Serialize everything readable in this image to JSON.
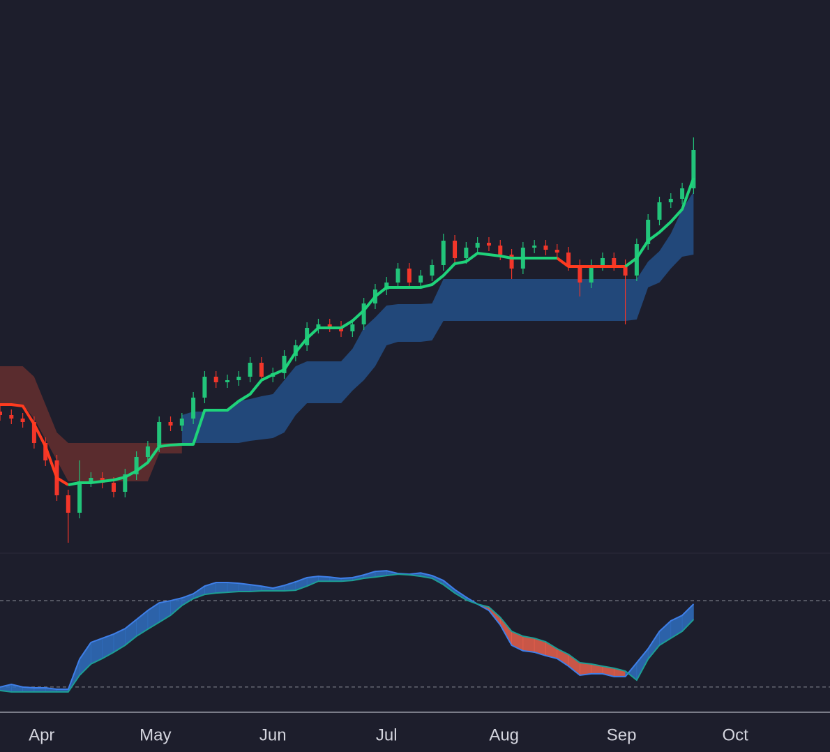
{
  "chart_data": {
    "type": "candlestick",
    "up_color": "#22c47a",
    "down_color": "#f2362a",
    "xlim": [
      80,
      299
    ],
    "ylim": [
      10,
      800
    ],
    "xticks": [
      {
        "value": 91,
        "label": "Apr"
      },
      {
        "value": 121,
        "label": "May"
      },
      {
        "value": 152,
        "label": "Jun"
      },
      {
        "value": 182,
        "label": "Jul"
      },
      {
        "value": 213,
        "label": "Aug"
      },
      {
        "value": 244,
        "label": "Sep"
      },
      {
        "value": 274,
        "label": "Oct"
      }
    ],
    "x": [
      80,
      83,
      86,
      89,
      92,
      95,
      98,
      101,
      104,
      107,
      110,
      113,
      116,
      119,
      122,
      125,
      128,
      131,
      134,
      137,
      140,
      143,
      146,
      149,
      152,
      155,
      158,
      161,
      164,
      167,
      170,
      173,
      176,
      179,
      182,
      185,
      188,
      191,
      194,
      197,
      200,
      203,
      206,
      209,
      212,
      215,
      218,
      221,
      224,
      227,
      230,
      233,
      236,
      239,
      242,
      245,
      248,
      251,
      254,
      257,
      260,
      263
    ],
    "open": [
      210,
      205,
      200,
      195,
      165,
      140,
      90,
      65,
      110,
      115,
      108,
      95,
      120,
      145,
      160,
      195,
      190,
      200,
      230,
      260,
      252,
      255,
      260,
      280,
      260,
      265,
      290,
      305,
      330,
      335,
      332,
      325,
      335,
      365,
      385,
      395,
      415,
      395,
      405,
      420,
      455,
      430,
      445,
      452,
      448,
      435,
      415,
      445,
      448,
      442,
      438,
      420,
      395,
      420,
      430,
      420,
      405,
      450,
      485,
      510,
      515,
      530
    ],
    "high": [
      218,
      213,
      208,
      203,
      173,
      148,
      98,
      140,
      123,
      123,
      116,
      128,
      153,
      168,
      203,
      203,
      208,
      238,
      268,
      268,
      263,
      268,
      288,
      288,
      273,
      298,
      313,
      338,
      343,
      343,
      340,
      343,
      373,
      393,
      403,
      423,
      423,
      413,
      428,
      465,
      463,
      453,
      460,
      460,
      456,
      443,
      453,
      456,
      456,
      450,
      446,
      428,
      428,
      438,
      438,
      428,
      458,
      493,
      518,
      523,
      538,
      603
    ],
    "low": [
      197,
      192,
      187,
      157,
      132,
      82,
      22,
      57,
      102,
      100,
      87,
      87,
      112,
      137,
      152,
      182,
      182,
      192,
      222,
      244,
      244,
      247,
      252,
      252,
      252,
      257,
      282,
      297,
      322,
      324,
      317,
      317,
      327,
      357,
      377,
      387,
      387,
      387,
      397,
      412,
      422,
      422,
      437,
      440,
      427,
      400,
      407,
      437,
      434,
      430,
      412,
      375,
      387,
      412,
      412,
      335,
      397,
      442,
      477,
      502,
      507,
      522
    ],
    "close": [
      205,
      200,
      195,
      165,
      140,
      90,
      65,
      110,
      115,
      108,
      95,
      120,
      145,
      160,
      195,
      190,
      200,
      230,
      260,
      252,
      255,
      260,
      280,
      260,
      265,
      290,
      305,
      330,
      335,
      332,
      325,
      335,
      365,
      385,
      395,
      415,
      395,
      405,
      420,
      455,
      430,
      445,
      452,
      448,
      435,
      415,
      445,
      448,
      442,
      438,
      420,
      395,
      420,
      430,
      420,
      405,
      450,
      485,
      510,
      515,
      530,
      585
    ],
    "bands": [
      {
        "color": "#6a2f30",
        "upper": [
          275,
          275,
          275,
          260,
          220,
          180,
          165,
          165,
          165,
          165,
          165,
          165,
          165,
          165,
          165,
          165,
          165,
          null,
          null,
          null,
          null,
          null,
          null,
          null,
          null,
          null,
          null,
          null,
          null,
          null,
          null,
          null,
          null,
          null,
          null,
          null,
          null,
          null,
          null,
          null,
          null,
          null,
          null,
          null,
          null,
          null,
          null,
          null,
          null,
          null,
          null,
          null,
          null,
          null,
          null,
          null,
          null,
          null,
          null,
          null,
          null,
          null
        ],
        "lower": [
          220,
          220,
          220,
          200,
          170,
          140,
          110,
          110,
          110,
          110,
          110,
          110,
          110,
          110,
          150,
          150,
          150,
          null,
          null,
          null,
          null,
          null,
          null,
          null,
          null,
          null,
          null,
          null,
          null,
          null,
          null,
          null,
          null,
          null,
          null,
          null,
          null,
          null,
          null,
          null,
          null,
          null,
          null,
          null,
          null,
          null,
          null,
          null,
          null,
          null,
          null,
          null,
          null,
          null,
          null,
          null,
          null,
          null,
          null,
          null,
          null,
          null
        ]
      },
      {
        "color": "#24538e",
        "upper": [
          null,
          null,
          null,
          null,
          null,
          null,
          null,
          null,
          null,
          null,
          null,
          null,
          null,
          null,
          null,
          null,
          205,
          210,
          210,
          210,
          210,
          225,
          228,
          232,
          235,
          255,
          275,
          282,
          282,
          282,
          282,
          300,
          330,
          345,
          362,
          364,
          364,
          364,
          365,
          400,
          400,
          400,
          400,
          400,
          400,
          400,
          400,
          400,
          400,
          400,
          400,
          400,
          400,
          400,
          400,
          400,
          400,
          425,
          440,
          465,
          500,
          525
        ],
        "lower": [
          null,
          null,
          null,
          null,
          null,
          null,
          null,
          null,
          null,
          null,
          null,
          null,
          null,
          null,
          null,
          null,
          163,
          165,
          165,
          165,
          165,
          165,
          168,
          170,
          172,
          180,
          205,
          222,
          222,
          222,
          222,
          240,
          255,
          275,
          305,
          310,
          310,
          310,
          312,
          340,
          340,
          340,
          340,
          340,
          340,
          340,
          340,
          340,
          340,
          340,
          340,
          340,
          340,
          340,
          340,
          340,
          342,
          388,
          395,
          415,
          432,
          435
        ]
      }
    ],
    "lines": [
      {
        "color": "#ff3b1f",
        "values": [
          220,
          220,
          218,
          192,
          160,
          115,
          105,
          null,
          null,
          null,
          null,
          null,
          null,
          null,
          null,
          null,
          null,
          null,
          null,
          null,
          null,
          null,
          null,
          null,
          null,
          null,
          null,
          null,
          null,
          null,
          null,
          null,
          null,
          null,
          null,
          null,
          null,
          null,
          null,
          null,
          null,
          null,
          null,
          null,
          null,
          null,
          null,
          null,
          null,
          430,
          418,
          418,
          418,
          418,
          418,
          418,
          430,
          null,
          null,
          null,
          null,
          null
        ]
      },
      {
        "color": "#1fd37a",
        "values": [
          null,
          null,
          null,
          null,
          null,
          null,
          105,
          108,
          108,
          110,
          112,
          116,
          125,
          137,
          160,
          162,
          163,
          163,
          212,
          212,
          212,
          225,
          235,
          255,
          263,
          270,
          295,
          315,
          330,
          330,
          330,
          340,
          355,
          375,
          388,
          388,
          388,
          388,
          392,
          405,
          422,
          425,
          437,
          435,
          433,
          430,
          430,
          430,
          430,
          430,
          null,
          null,
          null,
          null,
          null,
          418,
          430,
          455,
          467,
          482,
          500,
          545
        ]
      }
    ],
    "oscillator": {
      "type": "line",
      "ylim": [
        3,
        112
      ],
      "levels": [
        20,
        80
      ],
      "bull_color": "#2f6fc0",
      "bear_color": "#e8604c",
      "series": [
        {
          "color": "#3f7fe8",
          "values": [
            20.0,
            21.9,
            20.0,
            19.5,
            19.5,
            18.5,
            18.5,
            39.4,
            51.0,
            53.9,
            56.8,
            60.6,
            66.9,
            73.2,
            78.5,
            80.0,
            81.9,
            84.8,
            90.1,
            92.6,
            92.6,
            92.1,
            91.1,
            90.1,
            88.7,
            90.6,
            93.1,
            96.0,
            96.9,
            96.4,
            95.5,
            96.0,
            97.9,
            100.3,
            100.8,
            98.9,
            98.4,
            99.3,
            97.4,
            94.0,
            87.7,
            82.4,
            77.6,
            73.2,
            63.1,
            49.0,
            45.2,
            44.2,
            41.8,
            39.8,
            34.5,
            28.2,
            29.2,
            29.2,
            27.3,
            27.3,
            36.9,
            46.6,
            58.7,
            66.0,
            69.8,
            77.6
          ]
        },
        {
          "color": "#1d9e94",
          "values": [
            17.6,
            16.6,
            16.6,
            16.6,
            16.6,
            16.6,
            16.6,
            28.2,
            36.0,
            39.8,
            44.2,
            49.0,
            55.3,
            60.2,
            65.0,
            69.8,
            76.6,
            81.4,
            84.3,
            85.3,
            85.8,
            86.3,
            86.3,
            86.8,
            86.8,
            86.8,
            87.2,
            90.1,
            93.5,
            93.5,
            93.5,
            94.0,
            95.5,
            96.4,
            97.4,
            98.4,
            97.9,
            96.9,
            95.5,
            91.1,
            85.3,
            80.5,
            77.6,
            75.6,
            68.4,
            58.7,
            55.3,
            53.9,
            51.4,
            46.6,
            42.7,
            36.9,
            36.0,
            34.5,
            33.1,
            31.1,
            24.8,
            39.4,
            49.0,
            53.9,
            58.7,
            66.9
          ]
        }
      ]
    }
  }
}
